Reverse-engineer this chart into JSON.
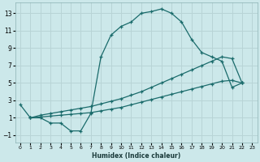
{
  "xlabel": "Humidex (Indice chaleur)",
  "background_color": "#cce8ea",
  "grid_color": "#b8d4d6",
  "line_color": "#1a6b6b",
  "xlim": [
    -0.5,
    23.5
  ],
  "ylim": [
    -1.8,
    14.2
  ],
  "xticks": [
    0,
    1,
    2,
    3,
    4,
    5,
    6,
    7,
    8,
    9,
    10,
    11,
    12,
    13,
    14,
    15,
    16,
    17,
    18,
    19,
    20,
    21,
    22,
    23
  ],
  "yticks": [
    -1,
    1,
    3,
    5,
    7,
    9,
    11,
    13
  ],
  "line1_x": [
    0,
    1,
    2,
    3,
    4,
    5,
    6,
    7,
    8,
    9,
    10,
    11,
    12,
    13,
    14,
    15,
    16,
    17,
    18,
    19,
    20,
    21,
    22
  ],
  "line1_y": [
    2.5,
    1.0,
    1.0,
    0.4,
    0.4,
    -0.5,
    -0.5,
    1.5,
    8.0,
    10.5,
    11.5,
    12.0,
    13.0,
    13.2,
    13.5,
    13.0,
    12.0,
    10.0,
    8.5,
    8.0,
    7.5,
    4.5,
    5.0
  ],
  "line2_x": [
    1,
    2,
    3,
    4,
    5,
    6,
    7,
    8,
    9,
    10,
    11,
    12,
    13,
    14,
    15,
    16,
    17,
    18,
    19,
    20,
    21,
    22
  ],
  "line2_y": [
    1.0,
    1.3,
    1.5,
    1.7,
    1.9,
    2.1,
    2.3,
    2.6,
    2.9,
    3.2,
    3.6,
    4.0,
    4.5,
    5.0,
    5.5,
    6.0,
    6.5,
    7.0,
    7.5,
    8.0,
    7.8,
    5.0
  ],
  "line3_x": [
    1,
    2,
    3,
    4,
    5,
    6,
    7,
    8,
    9,
    10,
    11,
    12,
    13,
    14,
    15,
    16,
    17,
    18,
    19,
    20,
    21,
    22
  ],
  "line3_y": [
    1.0,
    1.1,
    1.2,
    1.3,
    1.4,
    1.5,
    1.6,
    1.8,
    2.0,
    2.2,
    2.5,
    2.8,
    3.1,
    3.4,
    3.7,
    4.0,
    4.3,
    4.6,
    4.9,
    5.2,
    5.3,
    5.0
  ]
}
